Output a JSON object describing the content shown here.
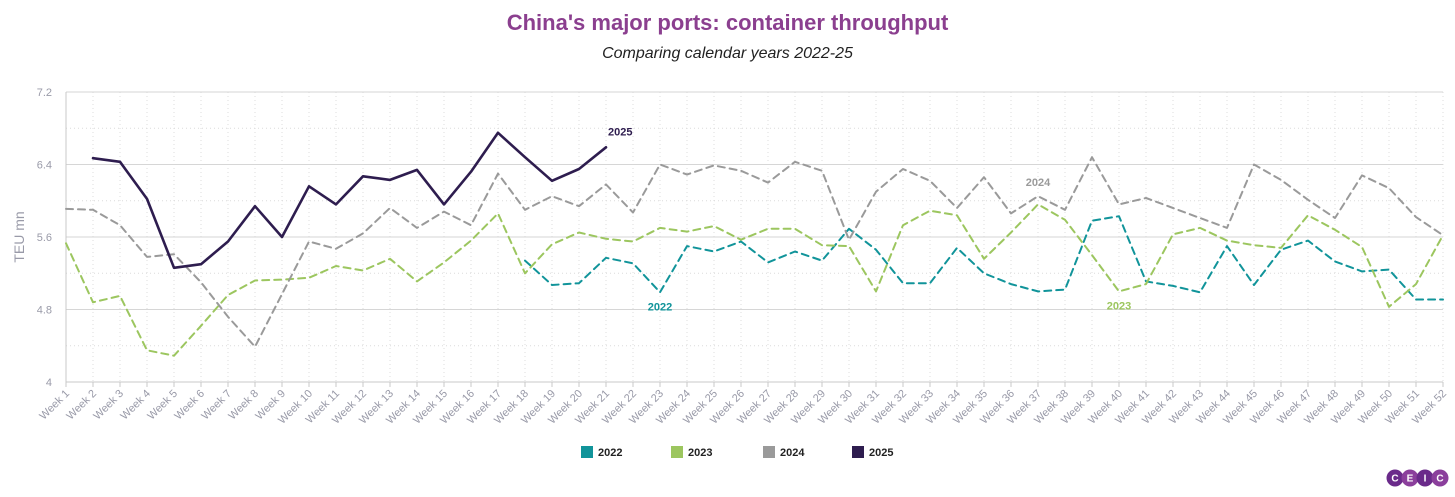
{
  "chart_data": {
    "type": "line",
    "title": "China's major ports: container throughput",
    "subtitle": "Comparing calendar years 2022-25",
    "xlabel": "",
    "ylabel": "TEU mn",
    "ylim": [
      4,
      7.2
    ],
    "yticks": [
      "4",
      "4.8",
      "5.6",
      "6.4",
      "7.2"
    ],
    "ytick_values": [
      4,
      4.8,
      5.6,
      6.4,
      7.2
    ],
    "grid": true,
    "legend_position": "bottom-center",
    "categories": [
      "Week 1",
      "Week 2",
      "Week 3",
      "Week 4",
      "Week 5",
      "Week 6",
      "Week 7",
      "Week 8",
      "Week 9",
      "Week 10",
      "Week 11",
      "Week 12",
      "Week 13",
      "Week 14",
      "Week 15",
      "Week 16",
      "Week 17",
      "Week 18",
      "Week 19",
      "Week 20",
      "Week 21",
      "Week 22",
      "Week 23",
      "Week 24",
      "Week 25",
      "Week 26",
      "Week 27",
      "Week 28",
      "Week 29",
      "Week 30",
      "Week 31",
      "Week 32",
      "Week 33",
      "Week 34",
      "Week 35",
      "Week 36",
      "Week 37",
      "Week 38",
      "Week 39",
      "Week 40",
      "Week 41",
      "Week 42",
      "Week 43",
      "Week 44",
      "Week 45",
      "Week 46",
      "Week 47",
      "Week 48",
      "Week 49",
      "Week 50",
      "Week 51",
      "Week 52"
    ],
    "series": [
      {
        "name": "2022",
        "color": "#11949a",
        "dash": true,
        "label": "2022",
        "label_index": 22,
        "label_anchor": "below",
        "values": [
          null,
          null,
          null,
          null,
          null,
          null,
          null,
          null,
          null,
          null,
          null,
          null,
          null,
          null,
          null,
          null,
          null,
          5.34,
          5.07,
          5.09,
          5.37,
          5.31,
          4.99,
          5.5,
          5.44,
          5.55,
          5.32,
          5.44,
          5.34,
          5.69,
          5.46,
          5.09,
          5.09,
          5.48,
          5.2,
          5.08,
          5.0,
          5.02,
          5.78,
          5.83,
          5.11,
          5.06,
          4.99,
          5.5,
          5.07,
          5.46,
          5.56,
          5.33,
          5.22,
          5.24,
          4.91,
          4.91
        ]
      },
      {
        "name": "2023",
        "color": "#9cc65f",
        "dash": true,
        "label": "2023",
        "label_index": 39,
        "label_anchor": "below",
        "values": [
          5.53,
          4.88,
          4.95,
          4.35,
          4.29,
          4.62,
          4.96,
          5.12,
          5.13,
          5.15,
          5.28,
          5.23,
          5.36,
          5.11,
          5.32,
          5.56,
          5.86,
          5.2,
          5.52,
          5.65,
          5.58,
          5.55,
          5.7,
          5.66,
          5.72,
          5.57,
          5.69,
          5.69,
          5.51,
          5.5,
          5.0,
          5.73,
          5.89,
          5.84,
          5.36,
          5.65,
          5.96,
          5.79,
          5.4,
          5.0,
          5.08,
          5.63,
          5.7,
          5.56,
          5.51,
          5.48,
          5.84,
          5.68,
          5.49,
          4.83,
          5.08,
          5.62
        ]
      },
      {
        "name": "2024",
        "color": "#9a9a9a",
        "dash": true,
        "label": "2024",
        "label_index": 36,
        "label_anchor": "above",
        "values": [
          5.91,
          5.9,
          5.73,
          5.38,
          5.41,
          5.1,
          4.72,
          4.39,
          4.97,
          5.55,
          5.47,
          5.64,
          5.92,
          5.7,
          5.88,
          5.73,
          6.3,
          5.9,
          6.05,
          5.94,
          6.18,
          5.87,
          6.4,
          6.29,
          6.39,
          6.33,
          6.2,
          6.43,
          6.33,
          5.57,
          6.1,
          6.35,
          6.22,
          5.92,
          6.26,
          5.86,
          6.05,
          5.9,
          6.48,
          5.96,
          6.03,
          5.92,
          5.81,
          5.7,
          6.4,
          6.23,
          6.01,
          5.81,
          6.28,
          6.14,
          5.82,
          5.62
        ]
      },
      {
        "name": "2025",
        "color": "#2e1d4f",
        "dash": false,
        "label": "2025",
        "label_index": 20,
        "label_anchor": "right",
        "values": [
          null,
          6.47,
          6.43,
          6.02,
          5.26,
          5.3,
          5.55,
          5.94,
          5.6,
          6.16,
          5.96,
          6.27,
          6.23,
          6.34,
          5.96,
          6.32,
          6.75,
          6.48,
          6.22,
          6.35,
          6.59,
          null,
          null,
          null,
          null,
          null,
          null,
          null,
          null,
          null,
          null,
          null,
          null,
          null,
          null,
          null,
          null,
          null,
          null,
          null,
          null,
          null,
          null,
          null,
          null,
          null,
          null,
          null,
          null,
          null,
          null,
          null
        ]
      }
    ]
  },
  "branding": {
    "logo_letters": [
      "C",
      "E",
      "I",
      "C"
    ]
  }
}
